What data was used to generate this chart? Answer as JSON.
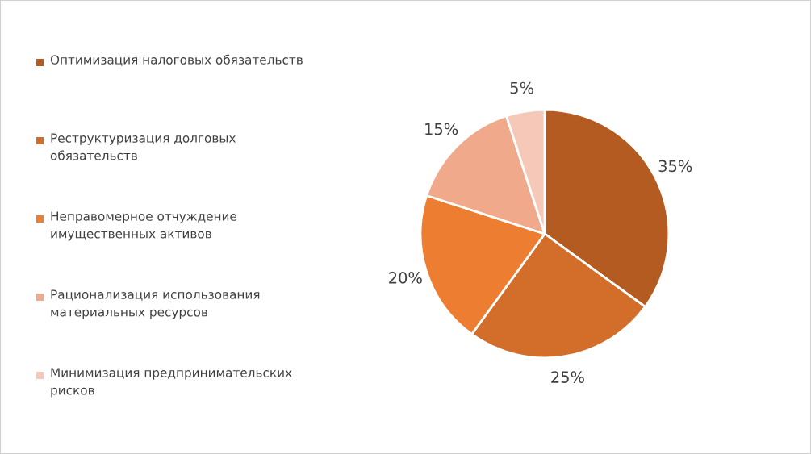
{
  "chart_data": {
    "type": "pie",
    "categories": [
      "Оптимизация налоговых обязательств",
      "Реструктуризация долговых обязательств",
      "Неправомерное отчуждение имущественных активов",
      "Рационализация использования материальных ресурсов",
      "Минимизация предпринимательских рисков"
    ],
    "values": [
      35,
      25,
      20,
      15,
      5
    ],
    "colors": [
      "#b45b21",
      "#d26d2a",
      "#ed7d31",
      "#f0a98b",
      "#f5c8b7"
    ],
    "value_labels": [
      "35%",
      "25%",
      "20%",
      "15%",
      "5%"
    ],
    "legend": "left"
  }
}
